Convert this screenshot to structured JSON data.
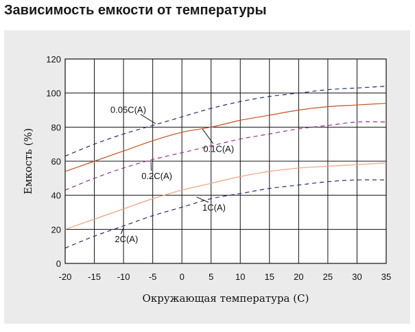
{
  "page": {
    "title": "Зависимость емкости от температуры"
  },
  "chart_data": {
    "type": "line",
    "title": "Зависимость емкости от температуры",
    "xlabel": "Окружающая температура (C)",
    "ylabel": "Емкость (%)",
    "xlim": [
      -20,
      35
    ],
    "ylim": [
      0,
      120
    ],
    "x_ticks": [
      -20,
      -15,
      -10,
      -5,
      0,
      5,
      10,
      15,
      20,
      25,
      30,
      35
    ],
    "y_ticks": [
      0,
      20,
      40,
      60,
      80,
      100,
      120
    ],
    "grid": true,
    "legend": "inline labels",
    "series": [
      {
        "name": "0.05C(A)",
        "style": "dashed",
        "color": "#1f2a6e",
        "x": [
          -20,
          -15,
          -10,
          -5,
          0,
          5,
          10,
          15,
          20,
          25,
          30,
          35
        ],
        "y": [
          63,
          70,
          76,
          81,
          86,
          91,
          95,
          98,
          100,
          102,
          103,
          104
        ]
      },
      {
        "name": "0.1C(A)",
        "style": "solid",
        "color": "#c8501e",
        "x": [
          -20,
          -15,
          -10,
          -5,
          0,
          5,
          10,
          15,
          20,
          25,
          30,
          35
        ],
        "y": [
          54,
          60,
          66,
          72,
          77,
          80,
          84,
          87,
          90,
          92,
          93,
          94
        ]
      },
      {
        "name": "0.2C(A)",
        "style": "dashed",
        "color": "#9c2b86",
        "x": [
          -20,
          -15,
          -10,
          -5,
          0,
          5,
          10,
          15,
          20,
          25,
          30,
          35
        ],
        "y": [
          43,
          50,
          56,
          61,
          65,
          69,
          73,
          76,
          79,
          81,
          83,
          83
        ]
      },
      {
        "name": "1C(A)",
        "style": "solid",
        "color": "#f0a07a",
        "x": [
          -20,
          -15,
          -10,
          -5,
          0,
          5,
          10,
          15,
          20,
          25,
          30,
          35
        ],
        "y": [
          20,
          26,
          32,
          38,
          43,
          47,
          51,
          54,
          56,
          57,
          58,
          59
        ]
      },
      {
        "name": "2C(A)",
        "style": "dashed",
        "color": "#1f2a6e",
        "x": [
          -20,
          -15,
          -10,
          -5,
          0,
          5,
          10,
          15,
          20,
          25,
          30,
          35
        ],
        "y": [
          9,
          16,
          22,
          28,
          33,
          38,
          41,
          44,
          46,
          48,
          49,
          49
        ]
      }
    ],
    "labels": [
      {
        "text": "0.05C(A)",
        "x": -9.2,
        "y": 88.3,
        "lx": -4.5,
        "ly": 82
      },
      {
        "text": "0.1C(A)",
        "x": 6.3,
        "y": 65.5,
        "lx": 3.5,
        "ly": 79
      },
      {
        "text": "0.2C(A)",
        "x": -4.3,
        "y": 49.5,
        "lx": -5.3,
        "ly": 59.5
      },
      {
        "text": "1C(A)",
        "x": 5.5,
        "y": 31,
        "lx": 2.5,
        "ly": 39
      },
      {
        "text": "2C(A)",
        "x": -9.5,
        "y": 12.5,
        "lx": -10,
        "ly": 21
      }
    ]
  }
}
